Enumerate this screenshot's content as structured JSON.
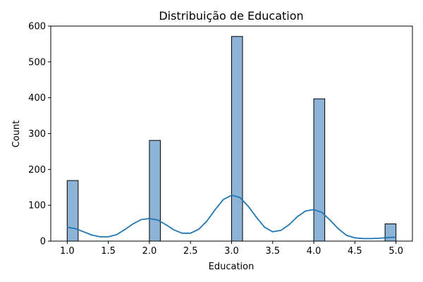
{
  "chart_data": {
    "type": "bar",
    "title": "Distribuição de Education",
    "xlabel": "Education",
    "ylabel": "Count",
    "xlim": [
      0.8,
      5.2
    ],
    "ylim": [
      0,
      600
    ],
    "xticks": [
      "1.0",
      "1.5",
      "2.0",
      "2.5",
      "3.0",
      "3.5",
      "4.0",
      "4.5",
      "5.0"
    ],
    "yticks": [
      "0",
      "100",
      "200",
      "300",
      "400",
      "500",
      "600"
    ],
    "bin_width": 0.1333,
    "bars": [
      {
        "x_start": 1.0,
        "value": 169
      },
      {
        "x_start": 2.0,
        "value": 281
      },
      {
        "x_start": 3.0,
        "value": 571
      },
      {
        "x_start": 4.0,
        "value": 397
      },
      {
        "x_start": 4.8667,
        "value": 48
      }
    ],
    "kde_line": {
      "x": [
        1.0,
        1.1,
        1.2,
        1.3,
        1.4,
        1.5,
        1.6,
        1.7,
        1.8,
        1.9,
        2.0,
        2.1,
        2.2,
        2.3,
        2.4,
        2.5,
        2.6,
        2.7,
        2.8,
        2.9,
        3.0,
        3.1,
        3.2,
        3.3,
        3.4,
        3.5,
        3.6,
        3.7,
        3.8,
        3.9,
        4.0,
        4.1,
        4.2,
        4.3,
        4.4,
        4.5,
        4.6,
        4.7,
        4.8,
        4.9,
        5.0
      ],
      "y": [
        39,
        35,
        26,
        17,
        12,
        12,
        18,
        32,
        48,
        60,
        63,
        59,
        46,
        31,
        22,
        22,
        33,
        56,
        88,
        116,
        128,
        122,
        98,
        67,
        39,
        26,
        30,
        46,
        68,
        84,
        88,
        80,
        58,
        34,
        16,
        9,
        7,
        7,
        8,
        10,
        11
      ]
    },
    "colors": {
      "bar_fill": "#8db4d7",
      "bar_edge": "#000000",
      "line": "#1f77b4"
    },
    "grid": false,
    "legend": "none"
  }
}
